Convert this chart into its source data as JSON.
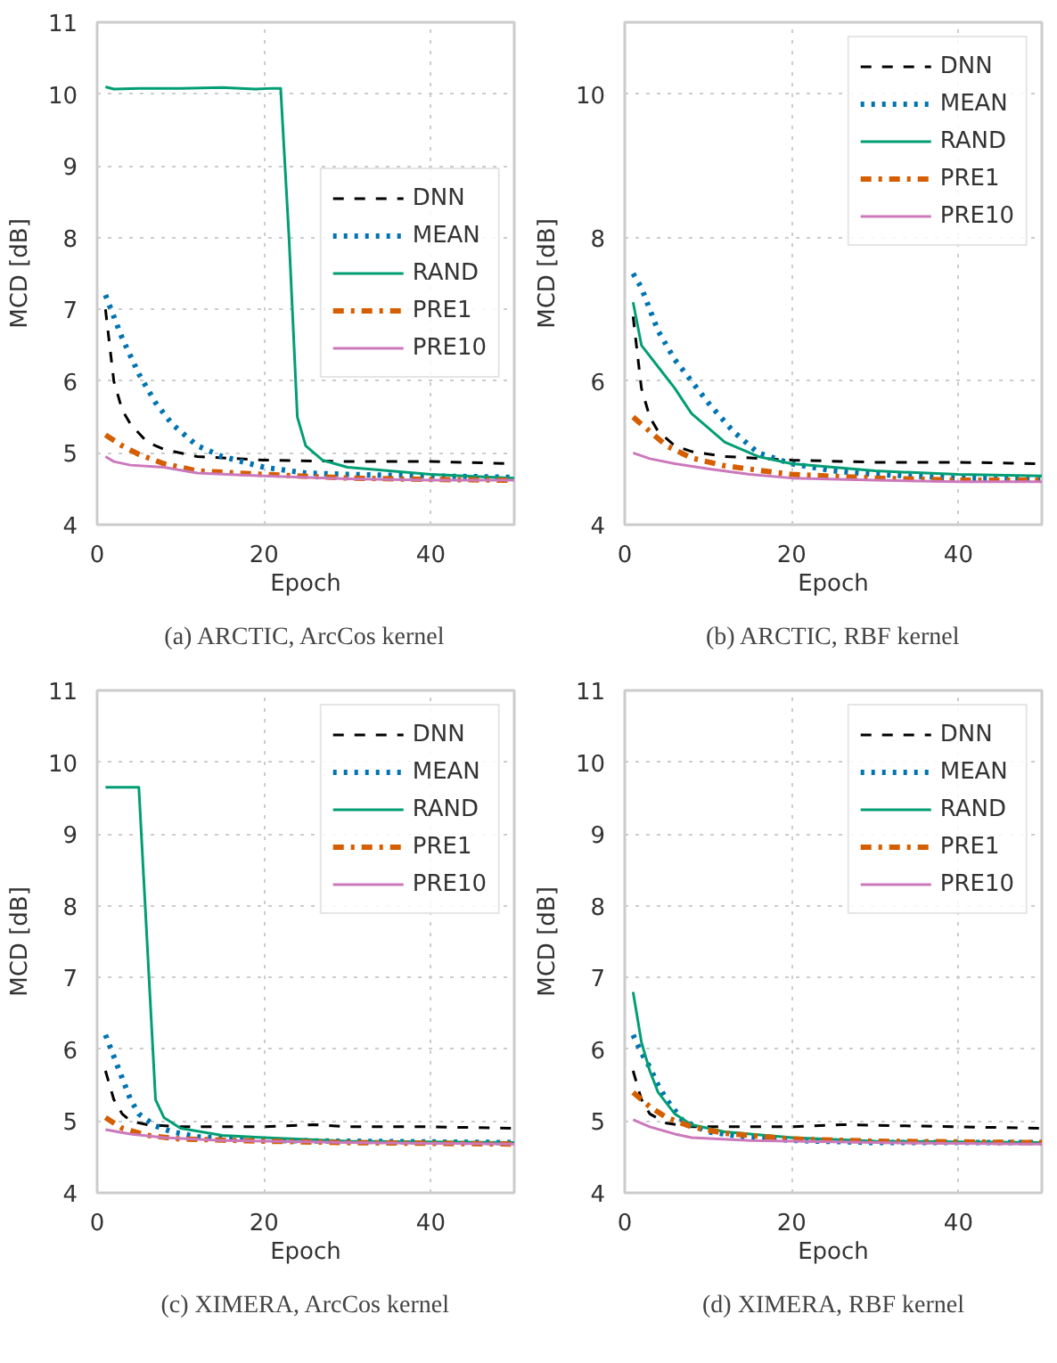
{
  "chart_data": [
    {
      "type": "line",
      "xlabel": "Epoch",
      "ylabel": "MCD [dB]",
      "xlim": [
        0,
        50
      ],
      "xticks": [
        0,
        20,
        40
      ],
      "ylim": [
        4,
        11
      ],
      "yticks": [
        4,
        5,
        6,
        7,
        8,
        9,
        10,
        11
      ],
      "grid": true,
      "legend": "right",
      "annotations": [
        "(a) ARCTIC, ArcCos kernel"
      ],
      "series": [
        {
          "name": "DNN",
          "color": "#000000",
          "line_style": "dashed",
          "x": [
            1,
            2,
            3,
            4,
            6,
            8,
            12,
            20,
            30,
            40,
            50
          ],
          "values": [
            7.0,
            6.0,
            5.6,
            5.4,
            5.15,
            5.05,
            4.95,
            4.9,
            4.88,
            4.88,
            4.85
          ]
        },
        {
          "name": "MEAN",
          "color": "#0173b2",
          "line_style": "dotted",
          "x": [
            1,
            2,
            3,
            5,
            7,
            9,
            12,
            15,
            20,
            25,
            30,
            40,
            50
          ],
          "values": [
            7.2,
            6.9,
            6.6,
            6.1,
            5.7,
            5.4,
            5.1,
            4.95,
            4.8,
            4.72,
            4.7,
            4.68,
            4.66
          ]
        },
        {
          "name": "RAND",
          "color": "#029e73",
          "line_style": "solid",
          "x": [
            1,
            2,
            5,
            10,
            15,
            19,
            21,
            22,
            23,
            24,
            25,
            27,
            30,
            40,
            50
          ],
          "values": [
            10.1,
            10.07,
            10.08,
            10.08,
            10.09,
            10.07,
            10.08,
            10.08,
            8.0,
            5.5,
            5.1,
            4.9,
            4.8,
            4.7,
            4.65
          ]
        },
        {
          "name": "PRE1",
          "color": "#d55e00",
          "line_style": "dashdot",
          "x": [
            1,
            3,
            5,
            8,
            12,
            20,
            30,
            40,
            50
          ],
          "values": [
            5.25,
            5.1,
            4.98,
            4.85,
            4.75,
            4.7,
            4.65,
            4.63,
            4.62
          ]
        },
        {
          "name": "PRE10",
          "color": "#cc78bc",
          "line_style": "solid",
          "x": [
            1,
            2,
            4,
            8,
            12,
            20,
            30,
            40,
            50
          ],
          "values": [
            4.95,
            4.88,
            4.83,
            4.8,
            4.72,
            4.68,
            4.64,
            4.62,
            4.62
          ]
        }
      ]
    },
    {
      "type": "line",
      "xlabel": "Epoch",
      "ylabel": "MCD [dB]",
      "xlim": [
        0,
        50
      ],
      "xticks": [
        0,
        20,
        40
      ],
      "ylim": [
        4,
        11
      ],
      "yticks": [
        4,
        6,
        8,
        10
      ],
      "grid": true,
      "legend": "top right",
      "annotations": [
        "(b) ARCTIC, RBF kernel"
      ],
      "series": [
        {
          "name": "DNN",
          "color": "#000000",
          "line_style": "dashed",
          "x": [
            1,
            2,
            3,
            4,
            6,
            8,
            12,
            20,
            30,
            40,
            50
          ],
          "values": [
            6.9,
            5.9,
            5.5,
            5.3,
            5.1,
            5.02,
            4.95,
            4.9,
            4.87,
            4.87,
            4.85
          ]
        },
        {
          "name": "MEAN",
          "color": "#0173b2",
          "line_style": "dotted",
          "x": [
            1,
            2,
            4,
            6,
            8,
            10,
            13,
            16,
            20,
            25,
            30,
            40,
            50
          ],
          "values": [
            7.5,
            7.3,
            6.7,
            6.3,
            6.0,
            5.7,
            5.3,
            5.0,
            4.85,
            4.75,
            4.7,
            4.65,
            4.63
          ]
        },
        {
          "name": "RAND",
          "color": "#029e73",
          "line_style": "solid",
          "x": [
            1,
            2,
            4,
            6,
            8,
            12,
            16,
            20,
            30,
            40,
            50
          ],
          "values": [
            7.1,
            6.5,
            6.2,
            5.9,
            5.55,
            5.15,
            4.95,
            4.85,
            4.75,
            4.7,
            4.68
          ]
        },
        {
          "name": "PRE1",
          "color": "#d55e00",
          "line_style": "dashdot",
          "x": [
            1,
            3,
            5,
            8,
            12,
            20,
            30,
            40,
            50
          ],
          "values": [
            5.5,
            5.3,
            5.1,
            4.93,
            4.82,
            4.7,
            4.65,
            4.62,
            4.62
          ]
        },
        {
          "name": "PRE10",
          "color": "#cc78bc",
          "line_style": "solid",
          "x": [
            1,
            3,
            6,
            10,
            15,
            20,
            30,
            40,
            50
          ],
          "values": [
            5.0,
            4.92,
            4.85,
            4.78,
            4.7,
            4.65,
            4.62,
            4.6,
            4.6
          ]
        }
      ]
    },
    {
      "type": "line",
      "xlabel": "Epoch",
      "ylabel": "MCD [dB]",
      "xlim": [
        0,
        50
      ],
      "xticks": [
        0,
        20,
        40
      ],
      "ylim": [
        4,
        11
      ],
      "yticks": [
        4,
        5,
        6,
        7,
        8,
        9,
        10,
        11
      ],
      "grid": true,
      "legend": "top right",
      "annotations": [
        "(c) XIMERA, ArcCos kernel"
      ],
      "series": [
        {
          "name": "DNN",
          "color": "#000000",
          "line_style": "dashed",
          "x": [
            1,
            2,
            3,
            4,
            6,
            10,
            20,
            26,
            30,
            40,
            50
          ],
          "values": [
            5.7,
            5.3,
            5.1,
            5.0,
            4.95,
            4.92,
            4.92,
            4.95,
            4.92,
            4.92,
            4.9
          ]
        },
        {
          "name": "MEAN",
          "color": "#0173b2",
          "line_style": "dotted",
          "x": [
            1,
            2,
            3,
            4,
            5,
            7,
            9,
            12,
            20,
            30,
            50
          ],
          "values": [
            6.2,
            5.9,
            5.6,
            5.3,
            5.1,
            4.93,
            4.85,
            4.78,
            4.73,
            4.72,
            4.7
          ]
        },
        {
          "name": "RAND",
          "color": "#029e73",
          "line_style": "solid",
          "x": [
            1,
            3,
            5,
            7,
            8,
            10,
            15,
            20,
            30,
            50
          ],
          "values": [
            9.65,
            9.65,
            9.65,
            5.3,
            5.05,
            4.9,
            4.8,
            4.77,
            4.72,
            4.7
          ]
        },
        {
          "name": "PRE1",
          "color": "#d55e00",
          "line_style": "dashdot",
          "x": [
            1,
            3,
            6,
            10,
            20,
            30,
            50
          ],
          "values": [
            5.05,
            4.9,
            4.8,
            4.75,
            4.72,
            4.7,
            4.68
          ]
        },
        {
          "name": "PRE10",
          "color": "#cc78bc",
          "line_style": "solid",
          "x": [
            1,
            4,
            8,
            15,
            30,
            50
          ],
          "values": [
            4.88,
            4.82,
            4.77,
            4.73,
            4.7,
            4.68
          ]
        }
      ]
    },
    {
      "type": "line",
      "xlabel": "Epoch",
      "ylabel": "MCD [dB]",
      "xlim": [
        0,
        50
      ],
      "xticks": [
        0,
        20,
        40
      ],
      "ylim": [
        4,
        11
      ],
      "yticks": [
        4,
        5,
        6,
        7,
        8,
        9,
        10,
        11
      ],
      "grid": true,
      "legend": "top right",
      "annotations": [
        "(d) XIMERA, RBF kernel"
      ],
      "series": [
        {
          "name": "DNN",
          "color": "#000000",
          "line_style": "dashed",
          "x": [
            1,
            2,
            3,
            5,
            8,
            20,
            26,
            40,
            50
          ],
          "values": [
            5.7,
            5.3,
            5.1,
            4.97,
            4.92,
            4.92,
            4.95,
            4.92,
            4.9
          ]
        },
        {
          "name": "MEAN",
          "color": "#0173b2",
          "line_style": "dotted",
          "x": [
            1,
            2,
            3,
            4,
            5,
            7,
            10,
            15,
            20,
            30,
            50
          ],
          "values": [
            6.2,
            5.95,
            5.75,
            5.5,
            5.3,
            5.0,
            4.85,
            4.77,
            4.73,
            4.7,
            4.7
          ]
        },
        {
          "name": "RAND",
          "color": "#029e73",
          "line_style": "solid",
          "x": [
            1,
            2,
            3,
            4,
            6,
            8,
            12,
            20,
            30,
            50
          ],
          "values": [
            6.8,
            6.1,
            5.7,
            5.4,
            5.1,
            4.95,
            4.85,
            4.77,
            4.72,
            4.7
          ]
        },
        {
          "name": "PRE1",
          "color": "#d55e00",
          "line_style": "dashdot",
          "x": [
            1,
            3,
            5,
            8,
            12,
            20,
            30,
            50
          ],
          "values": [
            5.4,
            5.2,
            5.05,
            4.92,
            4.83,
            4.75,
            4.72,
            4.7
          ]
        },
        {
          "name": "PRE10",
          "color": "#cc78bc",
          "line_style": "solid",
          "x": [
            1,
            3,
            6,
            8,
            15,
            30,
            50
          ],
          "values": [
            5.02,
            4.92,
            4.82,
            4.77,
            4.73,
            4.7,
            4.68
          ]
        }
      ]
    }
  ]
}
